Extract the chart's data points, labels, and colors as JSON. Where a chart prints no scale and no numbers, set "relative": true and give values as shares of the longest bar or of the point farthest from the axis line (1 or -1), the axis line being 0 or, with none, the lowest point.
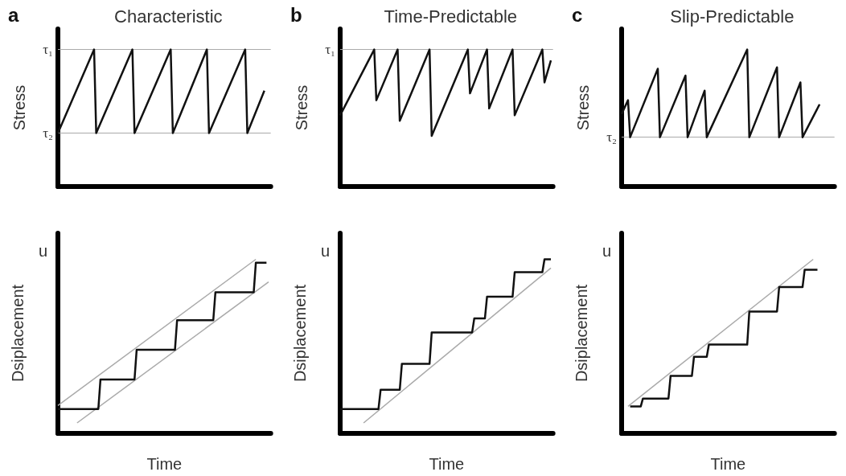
{
  "chart_data": [
    {
      "type": "line",
      "relative": true,
      "title": "Characteristic",
      "ylabel": "Stress",
      "annotations": [
        "a"
      ],
      "categories": [
        null,
        null,
        null,
        null,
        null,
        null,
        null,
        null,
        null,
        null,
        null,
        null,
        null,
        null,
        null,
        null,
        null,
        null,
        null,
        null,
        null,
        null,
        null,
        null,
        null,
        null,
        null,
        null,
        null,
        null,
        null,
        null,
        null,
        null,
        null,
        null,
        null,
        null,
        null,
        null,
        null,
        null,
        null,
        null,
        null,
        null,
        null,
        null,
        null,
        null,
        null,
        null,
        null,
        null,
        null,
        null,
        null,
        null,
        null,
        null,
        null,
        null,
        null,
        null,
        null,
        null,
        null,
        null,
        null,
        null,
        null,
        null,
        null,
        null,
        null,
        null,
        null,
        null,
        null,
        null,
        null,
        null,
        null,
        null,
        null,
        null,
        null,
        null,
        null,
        null,
        null,
        null,
        null,
        null,
        null,
        null,
        null,
        null,
        null,
        null,
        null
      ],
      "ref_lines": [
        {
          "axis": "y",
          "value": 1,
          "label": "τ₁",
          "color": "#aaaaaa"
        },
        {
          "axis": "y",
          "value": 0.39,
          "label": "τ₂",
          "color": "#aaaaaa"
        }
      ],
      "series": [
        {
          "color": "#111111",
          "values": [
            0.39,
            null,
            null,
            null,
            null,
            null,
            null,
            null,
            null,
            null,
            null,
            null,
            null,
            null,
            null,
            null,
            null,
            1,
            0.39,
            null,
            null,
            null,
            null,
            null,
            null,
            null,
            null,
            null,
            null,
            null,
            null,
            null,
            null,
            null,
            null,
            1,
            0.39,
            null,
            null,
            null,
            null,
            null,
            null,
            null,
            null,
            null,
            null,
            null,
            null,
            null,
            null,
            null,
            null,
            1,
            0.39,
            null,
            null,
            null,
            null,
            null,
            null,
            null,
            null,
            null,
            null,
            null,
            null,
            null,
            null,
            null,
            1,
            0.39,
            null,
            null,
            null,
            null,
            null,
            null,
            null,
            null,
            null,
            null,
            null,
            null,
            null,
            null,
            null,
            null,
            1,
            0.39,
            null,
            null,
            null,
            null,
            null,
            null,
            null,
            0.7,
            null,
            null,
            null
          ]
        }
      ]
    },
    {
      "type": "line",
      "relative": true,
      "title": "Time-Predictable",
      "ylabel": "Stress",
      "annotations": [
        "b"
      ],
      "categories": [
        null,
        null,
        null,
        null,
        null,
        null,
        null,
        null,
        null,
        null,
        null,
        null,
        null,
        null,
        null,
        null,
        null,
        null,
        null,
        null,
        null,
        null,
        null,
        null,
        null,
        null,
        null,
        null,
        null,
        null,
        null,
        null,
        null,
        null,
        null,
        null,
        null,
        null,
        null,
        null,
        null,
        null,
        null,
        null,
        null,
        null,
        null,
        null,
        null,
        null,
        null,
        null,
        null,
        null,
        null,
        null,
        null,
        null,
        null,
        null,
        null,
        null,
        null,
        null,
        null,
        null,
        null,
        null,
        null,
        null,
        null,
        null,
        null,
        null,
        null,
        null,
        null,
        null,
        null,
        null,
        null,
        null,
        null,
        null,
        null,
        null,
        null,
        null,
        null,
        null,
        null,
        null,
        null,
        null,
        null,
        null,
        null,
        null,
        null,
        null,
        null
      ],
      "ref_lines": [
        {
          "axis": "y",
          "value": 1,
          "label": "τ₁",
          "color": "#aaaaaa"
        }
      ],
      "series": [
        {
          "color": "#111111",
          "values": [
            0.52,
            null,
            null,
            null,
            null,
            null,
            null,
            null,
            null,
            null,
            null,
            null,
            null,
            null,
            null,
            null,
            1,
            0.63,
            null,
            null,
            null,
            null,
            null,
            null,
            null,
            null,
            null,
            1,
            0.48,
            null,
            null,
            null,
            null,
            null,
            null,
            null,
            null,
            null,
            null,
            null,
            null,
            null,
            1,
            0.37,
            null,
            null,
            null,
            null,
            null,
            null,
            null,
            null,
            null,
            null,
            null,
            null,
            null,
            null,
            null,
            null,
            1,
            0.68,
            null,
            null,
            null,
            null,
            null,
            null,
            null,
            1,
            0.57,
            null,
            null,
            null,
            null,
            null,
            null,
            null,
            null,
            null,
            null,
            1,
            0.52,
            null,
            null,
            null,
            null,
            null,
            null,
            null,
            null,
            null,
            null,
            null,
            null,
            1,
            0.76,
            null,
            null,
            0.92,
            null
          ]
        }
      ]
    },
    {
      "type": "line",
      "relative": true,
      "title": "Slip-Predictable",
      "ylabel": "Stress",
      "annotations": [
        "c"
      ],
      "categories": [
        null,
        null,
        null,
        null,
        null,
        null,
        null,
        null,
        null,
        null,
        null,
        null,
        null,
        null,
        null,
        null,
        null,
        null,
        null,
        null,
        null,
        null,
        null,
        null,
        null,
        null,
        null,
        null,
        null,
        null,
        null,
        null,
        null,
        null,
        null,
        null,
        null,
        null,
        null,
        null,
        null,
        null,
        null,
        null,
        null,
        null,
        null,
        null,
        null,
        null,
        null,
        null,
        null,
        null,
        null,
        null,
        null,
        null,
        null,
        null,
        null,
        null,
        null,
        null,
        null,
        null,
        null,
        null,
        null,
        null,
        null,
        null,
        null,
        null,
        null,
        null,
        null,
        null,
        null,
        null,
        null,
        null,
        null,
        null,
        null,
        null,
        null,
        null,
        null,
        null,
        null,
        null,
        null,
        null,
        null,
        null,
        null,
        null,
        null,
        null,
        null
      ],
      "ref_lines": [
        {
          "axis": "y",
          "value": 0.36,
          "label": "τ₂",
          "color": "#aaaaaa"
        }
      ],
      "series": [
        {
          "color": "#111111",
          "values": [
            0.53,
            null,
            null,
            0.63,
            0.36,
            null,
            null,
            null,
            null,
            null,
            null,
            null,
            null,
            null,
            null,
            null,
            null,
            0.86,
            0.36,
            null,
            null,
            null,
            null,
            null,
            null,
            null,
            null,
            null,
            null,
            null,
            0.81,
            0.36,
            null,
            null,
            null,
            null,
            null,
            null,
            null,
            0.7,
            0.36,
            null,
            null,
            null,
            null,
            null,
            null,
            null,
            null,
            null,
            null,
            null,
            null,
            null,
            null,
            null,
            null,
            null,
            null,
            1,
            0.36,
            null,
            null,
            null,
            null,
            null,
            null,
            null,
            null,
            null,
            null,
            null,
            null,
            0.87,
            0.36,
            null,
            null,
            null,
            null,
            null,
            null,
            null,
            null,
            null,
            0.76,
            0.36,
            null,
            null,
            null,
            null,
            null,
            null,
            null,
            0.6,
            null,
            null,
            null,
            null,
            null,
            null,
            null
          ]
        }
      ]
    },
    {
      "type": "line",
      "relative": true,
      "xlabel": "Time",
      "ylabel": "Dsiplacement",
      "annotations": [
        "u"
      ],
      "categories": [
        null,
        null,
        null,
        null,
        null,
        null,
        null,
        null,
        null,
        null,
        null,
        null,
        null,
        null,
        null,
        null,
        null,
        null,
        null,
        null,
        null,
        null,
        null,
        null,
        null,
        null,
        null,
        null,
        null,
        null,
        null,
        null,
        null,
        null,
        null,
        null,
        null,
        null,
        null,
        null,
        null,
        null,
        null,
        null,
        null,
        null,
        null,
        null,
        null,
        null,
        null,
        null,
        null,
        null,
        null,
        null,
        null,
        null,
        null,
        null,
        null,
        null,
        null,
        null,
        null,
        null,
        null,
        null,
        null,
        null,
        null,
        null,
        null,
        null,
        null,
        null,
        null,
        null,
        null,
        null,
        null,
        null,
        null,
        null,
        null,
        null,
        null,
        null,
        null,
        null,
        null,
        null,
        null,
        null,
        null,
        null,
        null,
        null,
        null,
        null,
        null
      ],
      "series": [
        {
          "color": "#aaaaaa",
          "values": [
            0.16,
            null,
            null,
            null,
            null,
            null,
            null,
            null,
            null,
            null,
            null,
            null,
            null,
            null,
            null,
            null,
            null,
            null,
            null,
            null,
            null,
            null,
            null,
            null,
            null,
            null,
            null,
            null,
            null,
            null,
            null,
            null,
            null,
            null,
            null,
            null,
            null,
            null,
            null,
            null,
            null,
            null,
            null,
            null,
            null,
            null,
            null,
            null,
            null,
            null,
            null,
            null,
            null,
            null,
            null,
            null,
            null,
            null,
            null,
            null,
            null,
            null,
            null,
            null,
            null,
            null,
            null,
            null,
            null,
            null,
            null,
            null,
            null,
            null,
            null,
            null,
            null,
            null,
            null,
            null,
            null,
            null,
            null,
            null,
            null,
            null,
            null,
            null,
            null,
            null,
            null,
            null,
            null,
            1,
            null,
            null,
            null,
            null,
            null,
            null,
            null
          ]
        },
        {
          "color": "#aaaaaa",
          "values": [
            null,
            null,
            null,
            null,
            null,
            null,
            null,
            null,
            null,
            0.06,
            null,
            null,
            null,
            null,
            null,
            null,
            null,
            null,
            null,
            null,
            null,
            null,
            null,
            null,
            null,
            null,
            null,
            null,
            null,
            null,
            null,
            null,
            null,
            null,
            null,
            null,
            null,
            null,
            null,
            null,
            null,
            null,
            null,
            null,
            null,
            null,
            null,
            null,
            null,
            null,
            null,
            null,
            null,
            null,
            null,
            null,
            null,
            null,
            null,
            null,
            null,
            null,
            null,
            null,
            null,
            null,
            null,
            null,
            null,
            null,
            null,
            null,
            null,
            null,
            null,
            null,
            null,
            null,
            null,
            null,
            null,
            null,
            null,
            null,
            null,
            null,
            null,
            null,
            null,
            null,
            null,
            null,
            null,
            null,
            null,
            null,
            null,
            null,
            null,
            0.87,
            null
          ]
        },
        {
          "color": "#111111",
          "values": [
            0.14,
            null,
            null,
            null,
            null,
            null,
            null,
            null,
            null,
            null,
            null,
            null,
            null,
            null,
            null,
            null,
            null,
            null,
            null,
            0.14,
            0.31,
            null,
            null,
            null,
            null,
            null,
            null,
            null,
            null,
            null,
            null,
            null,
            null,
            null,
            null,
            null,
            0.31,
            0.48,
            null,
            null,
            null,
            null,
            null,
            null,
            null,
            null,
            null,
            null,
            null,
            null,
            null,
            null,
            null,
            null,
            null,
            0.48,
            0.65,
            null,
            null,
            null,
            null,
            null,
            null,
            null,
            null,
            null,
            null,
            null,
            null,
            null,
            null,
            null,
            null,
            0.65,
            0.81,
            null,
            null,
            null,
            null,
            null,
            null,
            null,
            null,
            null,
            null,
            null,
            null,
            null,
            null,
            null,
            null,
            null,
            0.81,
            0.98,
            null,
            null,
            null,
            null,
            0.98,
            null,
            null
          ]
        }
      ]
    },
    {
      "type": "line",
      "relative": true,
      "xlabel": "Time",
      "ylabel": "Dsiplacement",
      "annotations": [
        "u"
      ],
      "categories": [
        null,
        null,
        null,
        null,
        null,
        null,
        null,
        null,
        null,
        null,
        null,
        null,
        null,
        null,
        null,
        null,
        null,
        null,
        null,
        null,
        null,
        null,
        null,
        null,
        null,
        null,
        null,
        null,
        null,
        null,
        null,
        null,
        null,
        null,
        null,
        null,
        null,
        null,
        null,
        null,
        null,
        null,
        null,
        null,
        null,
        null,
        null,
        null,
        null,
        null,
        null,
        null,
        null,
        null,
        null,
        null,
        null,
        null,
        null,
        null,
        null,
        null,
        null,
        null,
        null,
        null,
        null,
        null,
        null,
        null,
        null,
        null,
        null,
        null,
        null,
        null,
        null,
        null,
        null,
        null,
        null,
        null,
        null,
        null,
        null,
        null,
        null,
        null,
        null,
        null,
        null,
        null,
        null,
        null,
        null,
        null,
        null,
        null,
        null,
        null,
        null
      ],
      "series": [
        {
          "color": "#aaaaaa",
          "values": [
            null,
            null,
            null,
            null,
            null,
            null,
            null,
            null,
            null,
            null,
            null,
            0.06,
            null,
            null,
            null,
            null,
            null,
            null,
            null,
            null,
            null,
            null,
            null,
            null,
            null,
            null,
            null,
            null,
            null,
            null,
            null,
            null,
            null,
            null,
            null,
            null,
            null,
            null,
            null,
            null,
            null,
            null,
            null,
            null,
            null,
            null,
            null,
            null,
            null,
            null,
            null,
            null,
            null,
            null,
            null,
            null,
            null,
            null,
            null,
            null,
            null,
            null,
            null,
            null,
            null,
            null,
            null,
            null,
            null,
            null,
            null,
            null,
            null,
            null,
            null,
            null,
            null,
            null,
            null,
            null,
            null,
            null,
            null,
            null,
            null,
            null,
            null,
            null,
            null,
            null,
            null,
            null,
            null,
            null,
            null,
            null,
            null,
            null,
            null,
            0.95,
            null
          ]
        },
        {
          "color": "#111111",
          "values": [
            0.14,
            null,
            null,
            null,
            null,
            null,
            null,
            null,
            null,
            null,
            null,
            null,
            null,
            null,
            null,
            null,
            null,
            null,
            0.14,
            0.25,
            null,
            null,
            null,
            null,
            null,
            null,
            null,
            null,
            0.25,
            0.4,
            null,
            null,
            null,
            null,
            null,
            null,
            null,
            null,
            null,
            null,
            null,
            null,
            0.4,
            0.58,
            null,
            null,
            null,
            null,
            null,
            null,
            null,
            null,
            null,
            null,
            null,
            null,
            null,
            null,
            null,
            null,
            null,
            null,
            0.58,
            0.66,
            null,
            null,
            null,
            null,
            0.66,
            0.785,
            null,
            null,
            null,
            null,
            null,
            null,
            null,
            null,
            null,
            null,
            null,
            0.785,
            0.926,
            null,
            null,
            null,
            null,
            null,
            null,
            null,
            null,
            null,
            null,
            null,
            null,
            0.926,
            1,
            null,
            null,
            1,
            null
          ]
        }
      ]
    },
    {
      "type": "line",
      "relative": true,
      "xlabel": "Time",
      "ylabel": "Dsiplacement",
      "annotations": [
        "u"
      ],
      "categories": [
        null,
        null,
        null,
        null,
        null,
        null,
        null,
        null,
        null,
        null,
        null,
        null,
        null,
        null,
        null,
        null,
        null,
        null,
        null,
        null,
        null,
        null,
        null,
        null,
        null,
        null,
        null,
        null,
        null,
        null,
        null,
        null,
        null,
        null,
        null,
        null,
        null,
        null,
        null,
        null,
        null,
        null,
        null,
        null,
        null,
        null,
        null,
        null,
        null,
        null,
        null,
        null,
        null,
        null,
        null,
        null,
        null,
        null,
        null,
        null,
        null,
        null,
        null,
        null,
        null,
        null,
        null,
        null,
        null,
        null,
        null,
        null,
        null,
        null,
        null,
        null,
        null,
        null,
        null,
        null,
        null,
        null,
        null,
        null,
        null,
        null,
        null,
        null,
        null,
        null,
        null,
        null,
        null,
        null,
        null,
        null,
        null,
        null,
        null,
        null,
        null
      ],
      "series": [
        {
          "color": "#aaaaaa",
          "values": [
            null,
            null,
            null,
            0.155,
            null,
            null,
            null,
            null,
            null,
            null,
            null,
            null,
            null,
            null,
            null,
            null,
            null,
            null,
            null,
            null,
            null,
            null,
            null,
            null,
            null,
            null,
            null,
            null,
            null,
            null,
            null,
            null,
            null,
            null,
            null,
            null,
            null,
            null,
            null,
            null,
            null,
            null,
            null,
            null,
            null,
            null,
            null,
            null,
            null,
            null,
            null,
            null,
            null,
            null,
            null,
            null,
            null,
            null,
            null,
            null,
            null,
            null,
            null,
            null,
            null,
            null,
            null,
            null,
            null,
            null,
            null,
            null,
            null,
            null,
            null,
            null,
            null,
            null,
            null,
            null,
            null,
            null,
            null,
            null,
            null,
            null,
            null,
            null,
            null,
            null,
            1,
            null,
            null,
            null,
            null,
            null,
            null,
            null,
            null,
            null,
            null
          ]
        },
        {
          "color": "#111111",
          "values": [
            null,
            null,
            null,
            null,
            0.155,
            null,
            null,
            null,
            null,
            0.155,
            0.2,
            null,
            null,
            null,
            null,
            null,
            null,
            null,
            null,
            null,
            null,
            null,
            0.2,
            0.33,
            null,
            null,
            null,
            null,
            null,
            null,
            null,
            null,
            null,
            0.33,
            0.44,
            null,
            null,
            null,
            null,
            null,
            0.44,
            0.51,
            null,
            null,
            null,
            null,
            null,
            null,
            null,
            null,
            null,
            null,
            null,
            null,
            null,
            null,
            null,
            null,
            null,
            0.51,
            0.7,
            null,
            null,
            null,
            null,
            null,
            null,
            null,
            null,
            null,
            null,
            null,
            null,
            0.7,
            0.84,
            null,
            null,
            null,
            null,
            null,
            null,
            null,
            null,
            null,
            null,
            0.84,
            0.94,
            null,
            null,
            null,
            null,
            null,
            0.94,
            null,
            null,
            null,
            null,
            null,
            null,
            null,
            null
          ]
        }
      ]
    }
  ]
}
